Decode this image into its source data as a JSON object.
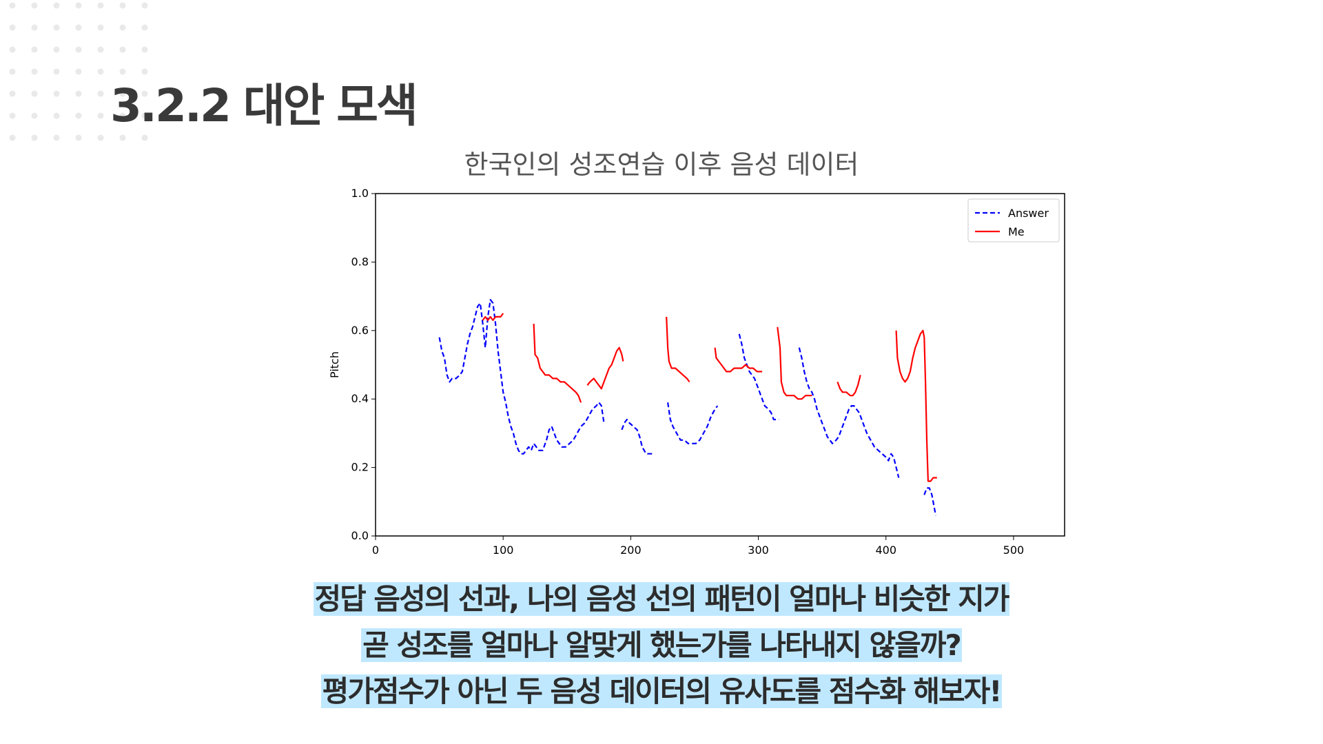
{
  "slide": {
    "title": "3.2.2 대안 모색",
    "caption": [
      "정답 음성의 선과, 나의 음성  선의 패턴이 얼마나 비슷한 지가",
      "곧 성조를 얼마나 알맞게 했는가를 나타내지 않을까?",
      "평가점수가 아닌 두 음성 데이터의 유사도를 점수화 해보자!"
    ],
    "highlight_color": "#bfe8ff",
    "dot_color": "#e9e9e9"
  },
  "chart_data": {
    "type": "line",
    "title": "한국인의  성조연습 이후 음성 데이터",
    "xlabel": "",
    "ylabel": "Pitch",
    "xlim": [
      0,
      540
    ],
    "ylim": [
      0,
      1.0
    ],
    "xticks": [
      0,
      100,
      200,
      300,
      400,
      500
    ],
    "yticks": [
      0.0,
      0.2,
      0.4,
      0.6,
      0.8,
      1.0
    ],
    "grid": false,
    "legend": "top-right",
    "series": [
      {
        "name": "Answer",
        "color": "#0000ff",
        "style": "dashed",
        "segments": [
          [
            [
              50,
              0.58
            ],
            [
              52,
              0.54
            ],
            [
              54,
              0.52
            ],
            [
              56,
              0.47
            ],
            [
              58,
              0.45
            ],
            [
              60,
              0.46
            ],
            [
              63,
              0.46
            ],
            [
              66,
              0.47
            ],
            [
              68,
              0.48
            ],
            [
              70,
              0.52
            ],
            [
              72,
              0.56
            ],
            [
              74,
              0.59
            ],
            [
              76,
              0.61
            ],
            [
              78,
              0.64
            ],
            [
              80,
              0.67
            ],
            [
              82,
              0.68
            ],
            [
              84,
              0.62
            ],
            [
              86,
              0.55
            ],
            [
              88,
              0.64
            ],
            [
              90,
              0.69
            ],
            [
              92,
              0.68
            ],
            [
              94,
              0.62
            ],
            [
              96,
              0.54
            ],
            [
              98,
              0.48
            ],
            [
              100,
              0.42
            ],
            [
              102,
              0.39
            ],
            [
              104,
              0.35
            ],
            [
              106,
              0.32
            ],
            [
              108,
              0.3
            ],
            [
              110,
              0.27
            ],
            [
              112,
              0.25
            ],
            [
              114,
              0.24
            ],
            [
              116,
              0.24
            ],
            [
              118,
              0.25
            ],
            [
              120,
              0.26
            ],
            [
              122,
              0.25
            ],
            [
              124,
              0.27
            ],
            [
              126,
              0.26
            ],
            [
              128,
              0.25
            ],
            [
              131,
              0.25
            ],
            [
              134,
              0.28
            ],
            [
              136,
              0.31
            ],
            [
              138,
              0.32
            ],
            [
              140,
              0.3
            ],
            [
              142,
              0.28
            ],
            [
              144,
              0.27
            ],
            [
              146,
              0.26
            ],
            [
              149,
              0.26
            ],
            [
              152,
              0.27
            ],
            [
              155,
              0.28
            ],
            [
              158,
              0.3
            ],
            [
              161,
              0.32
            ],
            [
              164,
              0.33
            ],
            [
              167,
              0.35
            ],
            [
              170,
              0.37
            ],
            [
              173,
              0.38
            ],
            [
              175,
              0.39
            ],
            [
              177,
              0.38
            ],
            [
              179,
              0.33
            ]
          ],
          [
            [
              193,
              0.31
            ],
            [
              195,
              0.33
            ],
            [
              197,
              0.34
            ],
            [
              199,
              0.33
            ],
            [
              202,
              0.32
            ],
            [
              205,
              0.31
            ],
            [
              207,
              0.29
            ],
            [
              209,
              0.26
            ],
            [
              212,
              0.24
            ],
            [
              215,
              0.24
            ],
            [
              217,
              0.24
            ]
          ],
          [
            [
              229,
              0.39
            ],
            [
              231,
              0.34
            ],
            [
              233,
              0.32
            ],
            [
              236,
              0.3
            ],
            [
              239,
              0.28
            ],
            [
              242,
              0.28
            ],
            [
              245,
              0.27
            ],
            [
              248,
              0.27
            ],
            [
              251,
              0.27
            ],
            [
              254,
              0.28
            ],
            [
              257,
              0.3
            ],
            [
              260,
              0.32
            ],
            [
              263,
              0.35
            ],
            [
              266,
              0.37
            ],
            [
              268,
              0.38
            ]
          ],
          [
            [
              285,
              0.59
            ],
            [
              287,
              0.56
            ],
            [
              289,
              0.52
            ],
            [
              291,
              0.5
            ],
            [
              293,
              0.48
            ],
            [
              295,
              0.47
            ],
            [
              297,
              0.46
            ],
            [
              299,
              0.44
            ],
            [
              301,
              0.42
            ],
            [
              303,
              0.4
            ],
            [
              305,
              0.38
            ],
            [
              308,
              0.37
            ],
            [
              310,
              0.36
            ],
            [
              312,
              0.34
            ],
            [
              314,
              0.34
            ],
            [
              316,
              0.34
            ]
          ],
          [
            [
              332,
              0.55
            ],
            [
              334,
              0.52
            ],
            [
              336,
              0.48
            ],
            [
              338,
              0.45
            ],
            [
              340,
              0.43
            ],
            [
              342,
              0.42
            ],
            [
              344,
              0.4
            ],
            [
              346,
              0.37
            ],
            [
              348,
              0.35
            ],
            [
              350,
              0.33
            ],
            [
              352,
              0.31
            ],
            [
              354,
              0.29
            ],
            [
              356,
              0.28
            ],
            [
              358,
              0.27
            ],
            [
              361,
              0.28
            ],
            [
              363,
              0.29
            ],
            [
              365,
              0.31
            ],
            [
              367,
              0.33
            ],
            [
              369,
              0.35
            ],
            [
              371,
              0.37
            ],
            [
              373,
              0.38
            ],
            [
              375,
              0.38
            ],
            [
              377,
              0.37
            ],
            [
              379,
              0.36
            ],
            [
              381,
              0.34
            ],
            [
              383,
              0.32
            ],
            [
              385,
              0.3
            ],
            [
              388,
              0.28
            ],
            [
              391,
              0.26
            ],
            [
              394,
              0.25
            ],
            [
              397,
              0.24
            ],
            [
              400,
              0.23
            ],
            [
              402,
              0.22
            ],
            [
              404,
              0.24
            ],
            [
              406,
              0.23
            ],
            [
              408,
              0.2
            ],
            [
              410,
              0.17
            ]
          ],
          [
            [
              430,
              0.12
            ],
            [
              432,
              0.14
            ],
            [
              434,
              0.14
            ],
            [
              436,
              0.12
            ],
            [
              438,
              0.08
            ],
            [
              439,
              0.06
            ]
          ]
        ]
      },
      {
        "name": "Me",
        "color": "#ff0000",
        "style": "solid",
        "segments": [
          [
            [
              84,
              0.63
            ],
            [
              86,
              0.64
            ],
            [
              88,
              0.63
            ],
            [
              90,
              0.64
            ],
            [
              92,
              0.63
            ],
            [
              94,
              0.64
            ],
            [
              96,
              0.64
            ],
            [
              98,
              0.64
            ],
            [
              100,
              0.65
            ]
          ],
          [
            [
              124,
              0.62
            ],
            [
              125,
              0.53
            ],
            [
              127,
              0.52
            ],
            [
              129,
              0.49
            ],
            [
              131,
              0.48
            ],
            [
              133,
              0.47
            ],
            [
              136,
              0.47
            ],
            [
              139,
              0.46
            ],
            [
              142,
              0.46
            ],
            [
              145,
              0.45
            ],
            [
              148,
              0.45
            ],
            [
              151,
              0.44
            ],
            [
              154,
              0.43
            ],
            [
              157,
              0.42
            ],
            [
              159,
              0.41
            ],
            [
              161,
              0.39
            ]
          ],
          [
            [
              166,
              0.44
            ],
            [
              168,
              0.45
            ],
            [
              171,
              0.46
            ],
            [
              173,
              0.45
            ],
            [
              175,
              0.44
            ],
            [
              177,
              0.43
            ],
            [
              179,
              0.45
            ],
            [
              181,
              0.47
            ],
            [
              183,
              0.49
            ],
            [
              185,
              0.5
            ],
            [
              187,
              0.52
            ],
            [
              189,
              0.54
            ],
            [
              191,
              0.55
            ],
            [
              193,
              0.53
            ],
            [
              194,
              0.51
            ]
          ],
          [
            [
              228,
              0.64
            ],
            [
              229,
              0.55
            ],
            [
              230,
              0.51
            ],
            [
              232,
              0.49
            ],
            [
              235,
              0.49
            ],
            [
              238,
              0.48
            ],
            [
              241,
              0.47
            ],
            [
              244,
              0.46
            ],
            [
              246,
              0.45
            ]
          ],
          [
            [
              266,
              0.55
            ],
            [
              267,
              0.52
            ],
            [
              269,
              0.51
            ],
            [
              271,
              0.5
            ],
            [
              273,
              0.49
            ],
            [
              275,
              0.48
            ],
            [
              278,
              0.48
            ],
            [
              281,
              0.49
            ],
            [
              284,
              0.49
            ],
            [
              287,
              0.49
            ],
            [
              290,
              0.5
            ],
            [
              293,
              0.49
            ],
            [
              296,
              0.49
            ],
            [
              299,
              0.48
            ],
            [
              302,
              0.48
            ],
            [
              303,
              0.48
            ]
          ],
          [
            [
              315,
              0.61
            ],
            [
              317,
              0.55
            ],
            [
              318,
              0.45
            ],
            [
              320,
              0.42
            ],
            [
              322,
              0.41
            ],
            [
              325,
              0.41
            ],
            [
              328,
              0.41
            ],
            [
              331,
              0.4
            ],
            [
              334,
              0.4
            ],
            [
              337,
              0.41
            ],
            [
              340,
              0.41
            ],
            [
              342,
              0.41
            ]
          ],
          [
            [
              362,
              0.45
            ],
            [
              364,
              0.43
            ],
            [
              366,
              0.42
            ],
            [
              369,
              0.42
            ],
            [
              372,
              0.41
            ],
            [
              374,
              0.41
            ],
            [
              376,
              0.42
            ],
            [
              378,
              0.44
            ],
            [
              380,
              0.47
            ]
          ],
          [
            [
              408,
              0.6
            ],
            [
              409,
              0.52
            ],
            [
              411,
              0.48
            ],
            [
              413,
              0.46
            ],
            [
              415,
              0.45
            ],
            [
              417,
              0.46
            ],
            [
              419,
              0.48
            ],
            [
              421,
              0.52
            ],
            [
              423,
              0.55
            ],
            [
              425,
              0.57
            ],
            [
              427,
              0.59
            ],
            [
              429,
              0.6
            ],
            [
              430,
              0.58
            ],
            [
              431,
              0.45
            ],
            [
              432,
              0.28
            ],
            [
              433,
              0.16
            ],
            [
              435,
              0.16
            ],
            [
              437,
              0.17
            ],
            [
              440,
              0.17
            ]
          ]
        ]
      }
    ]
  }
}
